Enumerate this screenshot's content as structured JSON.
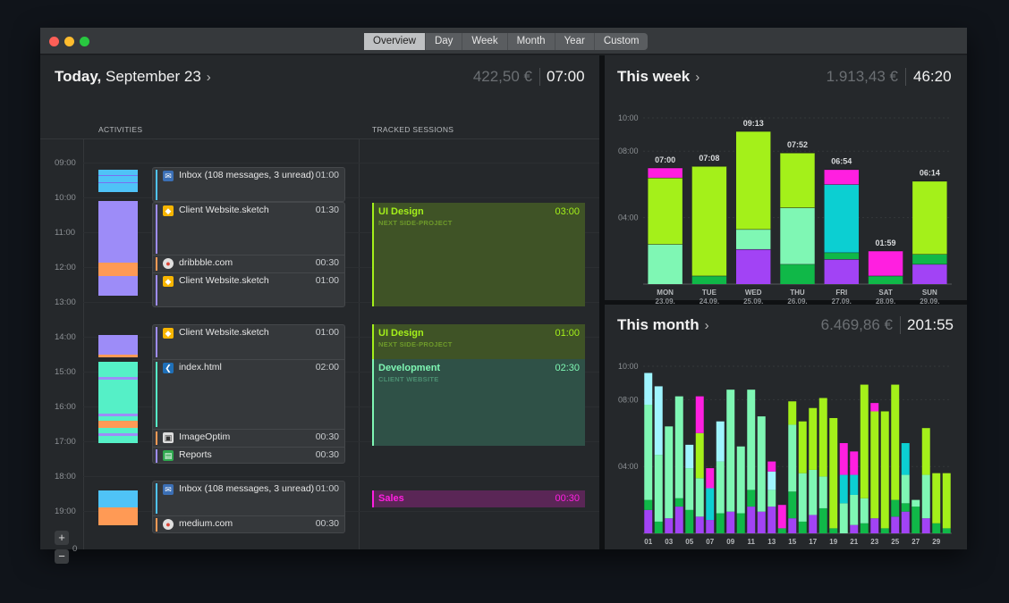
{
  "window": {
    "tabs": [
      "Overview",
      "Day",
      "Week",
      "Month",
      "Year",
      "Custom"
    ],
    "active_tab": "Overview"
  },
  "today": {
    "title_bold": "Today,",
    "title_rest": "September 23",
    "money": "422,50 €",
    "time": "07:00",
    "col_activities": "ACTIVITIES",
    "col_sessions": "TRACKED SESSIONS",
    "hours": [
      "09:00",
      "10:00",
      "11:00",
      "12:00",
      "13:00",
      "14:00",
      "15:00",
      "16:00",
      "17:00",
      "18:00",
      "19:00"
    ],
    "hour_partial": "0",
    "entries": [
      {
        "label": "Inbox (108 messages, 3 unread)",
        "duration": "01:00",
        "icon": "mail-icon"
      },
      {
        "label": "Client Website.sketch",
        "duration": "01:30",
        "icon": "sketch-icon"
      },
      {
        "label": "dribbble.com",
        "duration": "00:30",
        "icon": "chrome-icon"
      },
      {
        "label": "Client Website.sketch",
        "duration": "01:00",
        "icon": "sketch-icon"
      },
      {
        "label": "Client Website.sketch",
        "duration": "01:00",
        "icon": "sketch-icon"
      },
      {
        "label": "index.html",
        "duration": "02:00",
        "icon": "vscode-icon"
      },
      {
        "label": "ImageOptim",
        "duration": "00:30",
        "icon": "imageoptim-icon"
      },
      {
        "label": "Reports",
        "duration": "00:30",
        "icon": "reports-icon"
      },
      {
        "label": "Inbox (108 messages, 3 unread)",
        "duration": "01:00",
        "icon": "mail-icon"
      },
      {
        "label": "medium.com",
        "duration": "00:30",
        "icon": "chrome-icon"
      }
    ],
    "sessions": [
      {
        "title": "UI Design",
        "subtitle": "NEXT SIDE-PROJECT",
        "duration": "03:00",
        "color": "#a4f01a"
      },
      {
        "title": "UI Design",
        "subtitle": "NEXT SIDE-PROJECT",
        "duration": "01:00",
        "color": "#a4f01a"
      },
      {
        "title": "Development",
        "subtitle": "CLIENT WEBSITE",
        "duration": "02:30",
        "color": "#7ff7b4"
      },
      {
        "title": "Sales",
        "subtitle": "",
        "duration": "00:30",
        "color": "#ff1fe0"
      }
    ],
    "zoom_in": "+",
    "zoom_out": "−"
  },
  "week": {
    "title": "This week",
    "money": "1.913,43 €",
    "time": "46:20",
    "chart_data": {
      "type": "bar",
      "stacked": true,
      "y_unit": "hours",
      "ylim": [
        0,
        10
      ],
      "y_ticks": [
        "04:00",
        "08:00",
        "10:00"
      ],
      "categories": [
        "MON",
        "TUE",
        "WED",
        "THU",
        "FRI",
        "SAT",
        "SUN"
      ],
      "dates": [
        "23.09.",
        "24.09.",
        "25.09.",
        "26.09.",
        "27.09.",
        "28.09.",
        "29.09."
      ],
      "totals_label": [
        "07:00",
        "07:08",
        "09:13",
        "07:52",
        "06:54",
        "01:59",
        "06:14"
      ],
      "stacks": [
        [
          {
            "v": 2.4,
            "c": "#7ff7b4"
          },
          {
            "v": 4.0,
            "c": "#a4f01a"
          },
          {
            "v": 0.6,
            "c": "#ff1fe0"
          }
        ],
        [
          {
            "v": 0.5,
            "c": "#10b848"
          },
          {
            "v": 6.6,
            "c": "#a4f01a"
          }
        ],
        [
          {
            "v": 2.1,
            "c": "#a243f5"
          },
          {
            "v": 1.2,
            "c": "#7ff7b4"
          },
          {
            "v": 5.9,
            "c": "#a4f01a"
          }
        ],
        [
          {
            "v": 1.2,
            "c": "#10b848"
          },
          {
            "v": 3.4,
            "c": "#7ff7b4"
          },
          {
            "v": 3.3,
            "c": "#a4f01a"
          }
        ],
        [
          {
            "v": 1.5,
            "c": "#a243f5"
          },
          {
            "v": 0.4,
            "c": "#10b848"
          },
          {
            "v": 4.1,
            "c": "#0ccfd2"
          },
          {
            "v": 0.9,
            "c": "#ff1fe0"
          }
        ],
        [
          {
            "v": 0.5,
            "c": "#10b848"
          },
          {
            "v": 1.5,
            "c": "#ff1fe0"
          }
        ],
        [
          {
            "v": 1.2,
            "c": "#a243f5"
          },
          {
            "v": 0.6,
            "c": "#10b848"
          },
          {
            "v": 4.4,
            "c": "#a4f01a"
          }
        ]
      ]
    }
  },
  "month": {
    "title": "This month",
    "money": "6.469,86 €",
    "time": "201:55",
    "chart_data": {
      "type": "bar",
      "stacked": true,
      "y_unit": "hours",
      "ylim": [
        0,
        10
      ],
      "y_ticks": [
        "04:00",
        "08:00",
        "10:00"
      ],
      "x_ticks": [
        "01",
        "03",
        "05",
        "07",
        "09",
        "11",
        "13",
        "15",
        "17",
        "19",
        "21",
        "23",
        "25",
        "27",
        "29"
      ],
      "days": 30,
      "stacks": [
        [
          {
            "v": 1.4,
            "c": "#a243f5"
          },
          {
            "v": 0.6,
            "c": "#10b848"
          },
          {
            "v": 5.7,
            "c": "#7ff7b4"
          },
          {
            "v": 1.9,
            "c": "#9ff5ff"
          }
        ],
        [
          {
            "v": 0.7,
            "c": "#10b848"
          },
          {
            "v": 4.0,
            "c": "#7ff7b4"
          },
          {
            "v": 4.1,
            "c": "#9ff5ff"
          }
        ],
        [
          {
            "v": 0.9,
            "c": "#a243f5"
          },
          {
            "v": 5.5,
            "c": "#7ff7b4"
          }
        ],
        [
          {
            "v": 1.6,
            "c": "#a243f5"
          },
          {
            "v": 0.5,
            "c": "#10b848"
          },
          {
            "v": 6.1,
            "c": "#7ff7b4"
          }
        ],
        [
          {
            "v": 1.4,
            "c": "#10b848"
          },
          {
            "v": 2.5,
            "c": "#7ff7b4"
          },
          {
            "v": 1.4,
            "c": "#9ff5ff"
          }
        ],
        [
          {
            "v": 1.0,
            "c": "#a243f5"
          },
          {
            "v": 2.3,
            "c": "#7ff7b4"
          },
          {
            "v": 2.7,
            "c": "#a4f01a"
          },
          {
            "v": 2.2,
            "c": "#ff1fe0"
          }
        ],
        [
          {
            "v": 0.8,
            "c": "#a243f5"
          },
          {
            "v": 1.9,
            "c": "#0ccfd2"
          },
          {
            "v": 1.2,
            "c": "#ff1fe0"
          }
        ],
        [
          {
            "v": 1.2,
            "c": "#10b848"
          },
          {
            "v": 3.1,
            "c": "#7ff7b4"
          },
          {
            "v": 2.4,
            "c": "#9ff5ff"
          }
        ],
        [
          {
            "v": 1.3,
            "c": "#a243f5"
          },
          {
            "v": 7.3,
            "c": "#7ff7b4"
          }
        ],
        [
          {
            "v": 1.2,
            "c": "#10b848"
          },
          {
            "v": 4.0,
            "c": "#7ff7b4"
          }
        ],
        [
          {
            "v": 1.6,
            "c": "#a243f5"
          },
          {
            "v": 1.0,
            "c": "#10b848"
          },
          {
            "v": 6.0,
            "c": "#7ff7b4"
          }
        ],
        [
          {
            "v": 1.3,
            "c": "#a243f5"
          },
          {
            "v": 5.7,
            "c": "#7ff7b4"
          }
        ],
        [
          {
            "v": 1.6,
            "c": "#a243f5"
          },
          {
            "v": 1.0,
            "c": "#7ff7b4"
          },
          {
            "v": 1.1,
            "c": "#9ff5ff"
          },
          {
            "v": 0.6,
            "c": "#ff1fe0"
          }
        ],
        [
          {
            "v": 0.3,
            "c": "#10b848"
          },
          {
            "v": 1.4,
            "c": "#ff1fe0"
          }
        ],
        [
          {
            "v": 0.9,
            "c": "#a243f5"
          },
          {
            "v": 1.6,
            "c": "#10b848"
          },
          {
            "v": 4.0,
            "c": "#7ff7b4"
          },
          {
            "v": 1.4,
            "c": "#a4f01a"
          }
        ],
        [
          {
            "v": 0.7,
            "c": "#10b848"
          },
          {
            "v": 2.9,
            "c": "#7ff7b4"
          },
          {
            "v": 3.1,
            "c": "#a4f01a"
          }
        ],
        [
          {
            "v": 1.1,
            "c": "#a243f5"
          },
          {
            "v": 2.7,
            "c": "#7ff7b4"
          },
          {
            "v": 3.7,
            "c": "#a4f01a"
          }
        ],
        [
          {
            "v": 1.5,
            "c": "#10b848"
          },
          {
            "v": 1.9,
            "c": "#7ff7b4"
          },
          {
            "v": 4.7,
            "c": "#a4f01a"
          }
        ],
        [
          {
            "v": 0.3,
            "c": "#10b848"
          },
          {
            "v": 6.6,
            "c": "#a4f01a"
          }
        ],
        [
          {
            "v": 1.8,
            "c": "#7ff7b4"
          },
          {
            "v": 1.7,
            "c": "#0ccfd2"
          },
          {
            "v": 1.9,
            "c": "#ff1fe0"
          }
        ],
        [
          {
            "v": 0.5,
            "c": "#a243f5"
          },
          {
            "v": 1.8,
            "c": "#7ff7b4"
          },
          {
            "v": 1.2,
            "c": "#0ccfd2"
          },
          {
            "v": 1.4,
            "c": "#ff1fe0"
          }
        ],
        [
          {
            "v": 0.6,
            "c": "#10b848"
          },
          {
            "v": 1.5,
            "c": "#7ff7b4"
          },
          {
            "v": 6.8,
            "c": "#a4f01a"
          }
        ],
        [
          {
            "v": 0.9,
            "c": "#a243f5"
          },
          {
            "v": 6.4,
            "c": "#a4f01a"
          },
          {
            "v": 0.5,
            "c": "#ff1fe0"
          }
        ],
        [
          {
            "v": 0.3,
            "c": "#10b848"
          },
          {
            "v": 7.0,
            "c": "#a4f01a"
          }
        ],
        [
          {
            "v": 1.0,
            "c": "#a243f5"
          },
          {
            "v": 1.0,
            "c": "#10b848"
          },
          {
            "v": 6.9,
            "c": "#a4f01a"
          }
        ],
        [
          {
            "v": 1.3,
            "c": "#a243f5"
          },
          {
            "v": 0.5,
            "c": "#10b848"
          },
          {
            "v": 1.7,
            "c": "#7ff7b4"
          },
          {
            "v": 1.9,
            "c": "#0ccfd2"
          }
        ],
        [
          {
            "v": 1.6,
            "c": "#10b848"
          },
          {
            "v": 0.4,
            "c": "#7ff7b4"
          }
        ],
        [
          {
            "v": 0.9,
            "c": "#a243f5"
          },
          {
            "v": 2.6,
            "c": "#7ff7b4"
          },
          {
            "v": 2.8,
            "c": "#a4f01a"
          }
        ],
        [
          {
            "v": 0.6,
            "c": "#10b848"
          },
          {
            "v": 3.0,
            "c": "#a4f01a"
          }
        ],
        [
          {
            "v": 0.3,
            "c": "#10b848"
          },
          {
            "v": 3.3,
            "c": "#a4f01a"
          }
        ]
      ]
    }
  }
}
